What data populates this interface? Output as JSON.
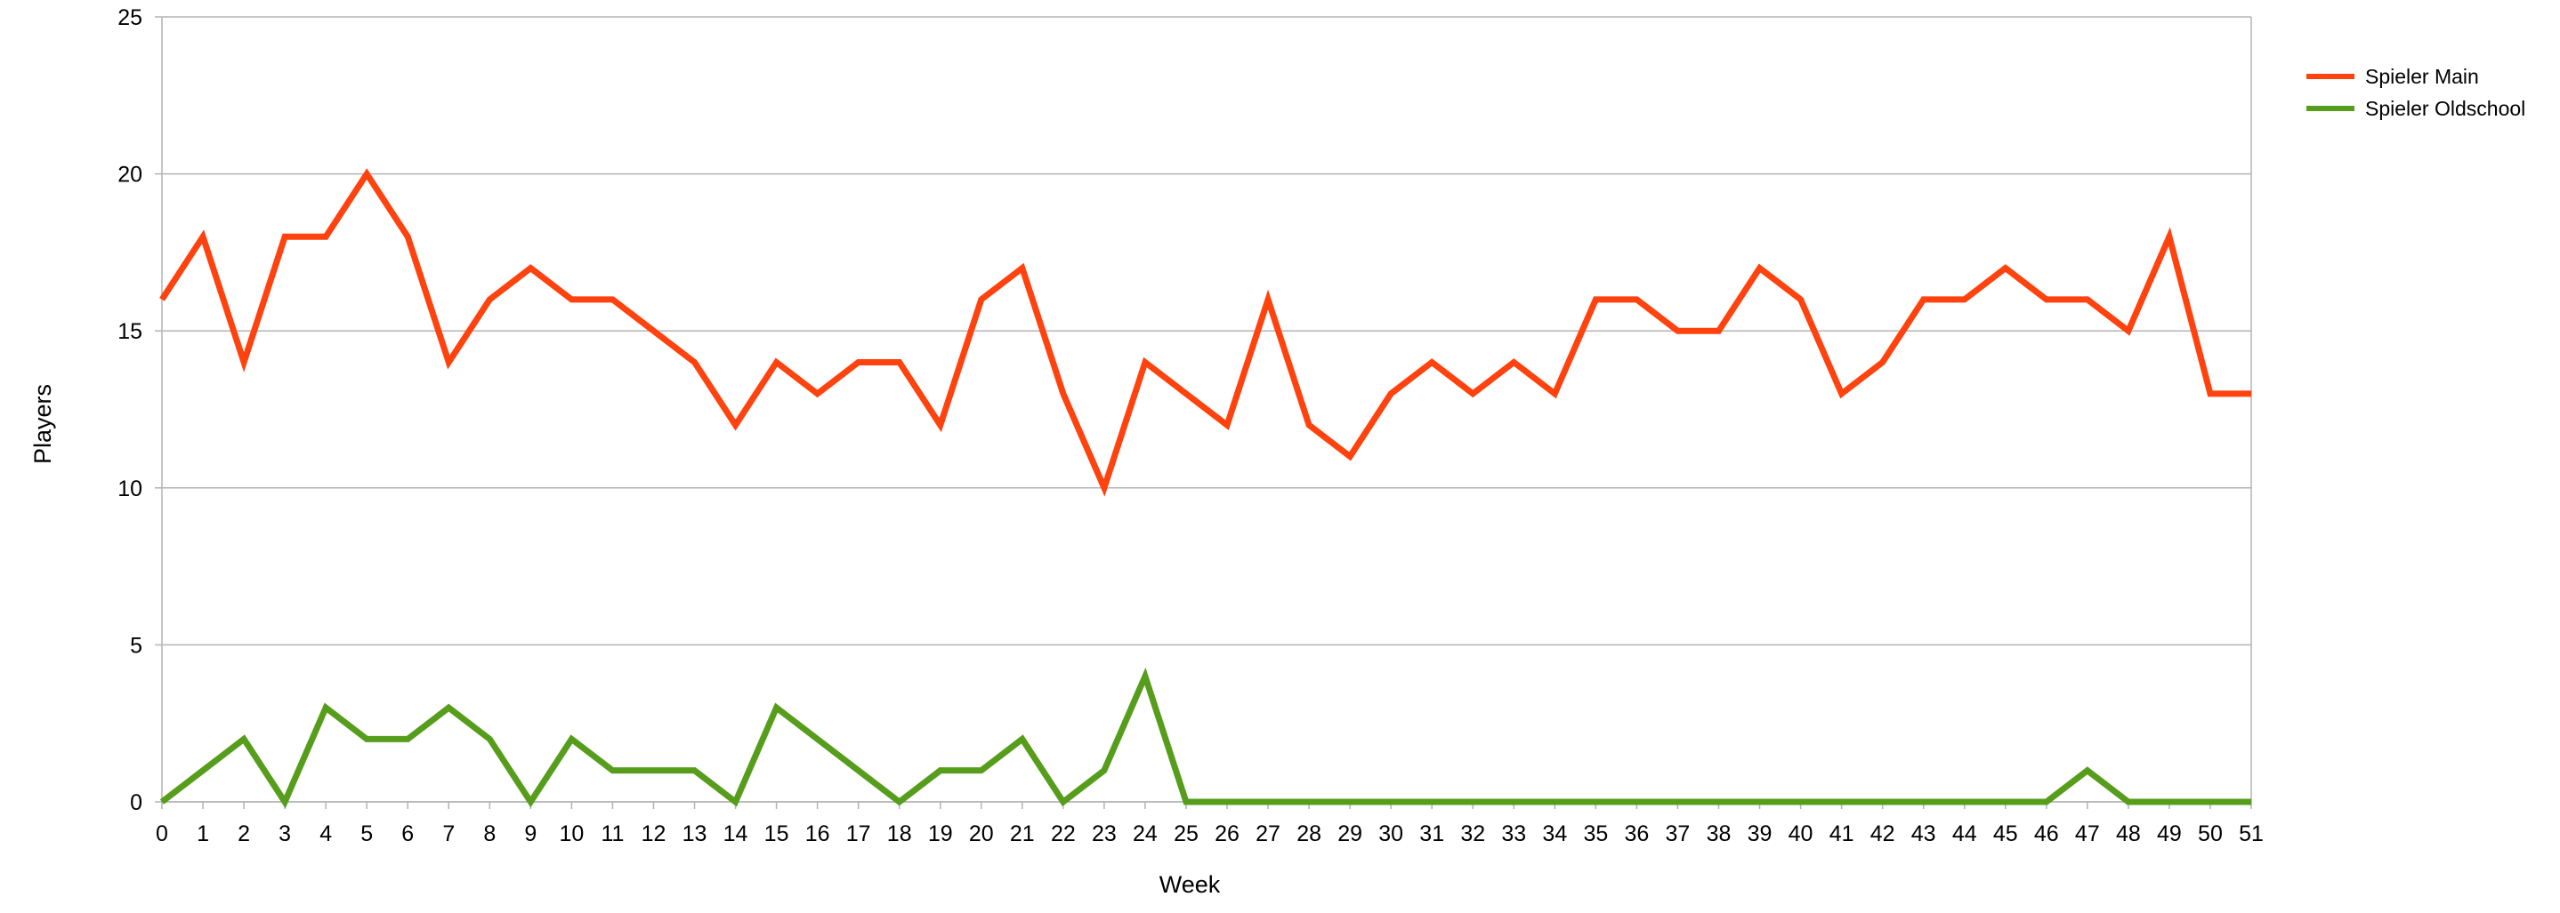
{
  "chart_data": {
    "type": "line",
    "title": "",
    "xlabel": "Week",
    "ylabel": "Players",
    "x": [
      0,
      1,
      2,
      3,
      4,
      5,
      6,
      7,
      8,
      9,
      10,
      11,
      12,
      13,
      14,
      15,
      16,
      17,
      18,
      19,
      20,
      21,
      22,
      23,
      24,
      25,
      26,
      27,
      28,
      29,
      30,
      31,
      32,
      33,
      34,
      35,
      36,
      37,
      38,
      39,
      40,
      41,
      42,
      43,
      44,
      45,
      46,
      47,
      48,
      49,
      50,
      51
    ],
    "xlim": [
      0,
      51
    ],
    "ylim": [
      0,
      25
    ],
    "yticks": [
      0,
      5,
      10,
      15,
      20,
      25
    ],
    "grid": "horizontal",
    "legend_position": "top-right",
    "series": [
      {
        "name": "Spieler Main",
        "color": "#ff420e",
        "values": [
          16,
          18,
          14,
          18,
          18,
          20,
          18,
          14,
          16,
          17,
          16,
          16,
          15,
          14,
          12,
          14,
          13,
          14,
          14,
          12,
          16,
          17,
          13,
          10,
          14,
          13,
          12,
          16,
          12,
          11,
          13,
          14,
          13,
          14,
          13,
          16,
          16,
          15,
          15,
          17,
          16,
          13,
          14,
          16,
          16,
          17,
          16,
          16,
          15,
          18,
          13,
          13
        ]
      },
      {
        "name": "Spieler Oldschool",
        "color": "#579d1c",
        "values": [
          0,
          1,
          2,
          0,
          3,
          2,
          2,
          3,
          2,
          0,
          2,
          1,
          1,
          1,
          0,
          3,
          2,
          1,
          0,
          1,
          1,
          2,
          0,
          1,
          4,
          0,
          0,
          0,
          0,
          0,
          0,
          0,
          0,
          0,
          0,
          0,
          0,
          0,
          0,
          0,
          0,
          0,
          0,
          0,
          0,
          0,
          0,
          1,
          0,
          0,
          0,
          0
        ]
      }
    ]
  }
}
